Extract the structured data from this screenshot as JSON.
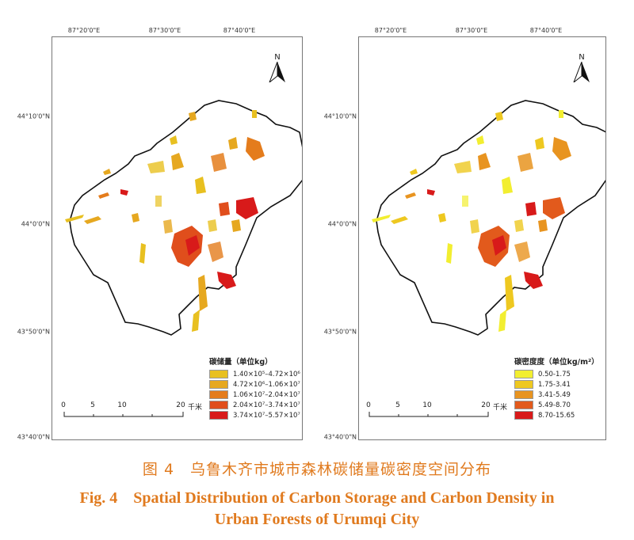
{
  "maps": [
    {
      "id": "left",
      "lon_ticks": [
        "87°20'0\"E",
        "87°30'0\"E",
        "87°40'0\"E"
      ],
      "lat_ticks": [
        "44°10'0\"N",
        "44°0'0\"N",
        "43°50'0\"N",
        "43°40'0\"N"
      ],
      "north_label": "N",
      "legend": {
        "title": "碳储量（单位kg）",
        "classes": [
          {
            "label": "1.40×10⁵–4.72×10⁶",
            "color": "#e8c020"
          },
          {
            "label": "4.72×10⁶–1.06×10⁷",
            "color": "#e6a820"
          },
          {
            "label": "1.06×10⁷–2.04×10⁷",
            "color": "#e47c1c"
          },
          {
            "label": "2.04×10⁷–3.74×10⁷",
            "color": "#e04e1c"
          },
          {
            "label": "3.74×10⁷–5.57×10⁷",
            "color": "#d81a1a"
          }
        ]
      },
      "scale": {
        "labels": [
          "0",
          "5",
          "10",
          "20"
        ],
        "unit": "千米"
      }
    },
    {
      "id": "right",
      "lon_ticks": [
        "87°20'0\"E",
        "87°30'0\"E",
        "87°40'0\"E"
      ],
      "lat_ticks": [
        "44°10'0\"N",
        "44°0'0\"N",
        "43°50'0\"N",
        "43°40'0\"N"
      ],
      "north_label": "N",
      "legend": {
        "title": "碳密度度（单位kg/m²）",
        "classes": [
          {
            "label": "0.50-1.75",
            "color": "#f2ee30"
          },
          {
            "label": "1.75-3.41",
            "color": "#eec820"
          },
          {
            "label": "3.41-5.49",
            "color": "#e89420"
          },
          {
            "label": "5.49-8.70",
            "color": "#e25a1c"
          },
          {
            "label": "8.70-15.65",
            "color": "#d81a1a"
          }
        ]
      },
      "scale": {
        "labels": [
          "0",
          "5",
          "10",
          "20"
        ],
        "unit": "千米"
      }
    }
  ],
  "caption": {
    "cn": "图 4　乌鲁木齐市城市森林碳储量碳密度空间分布",
    "en_line1": "Fig. 4　Spatial Distribution of Carbon Storage and Carbon Density in",
    "en_line2": "Urban Forests of Urumqi City"
  }
}
